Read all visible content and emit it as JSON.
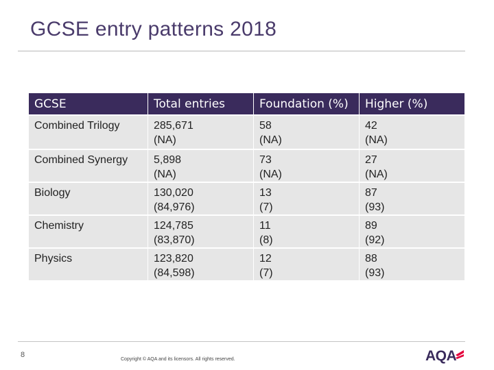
{
  "slide": {
    "title": "GCSE entry patterns 2018",
    "page_number": "8",
    "copyright": "Copyright © AQA and its licensors. All rights reserved.",
    "logo_text": "AQA",
    "colors": {
      "title": "#4a3b6b",
      "header_bg": "#3a2b5c",
      "row_bg": "#e6e6e6"
    }
  },
  "table": {
    "headers": [
      "GCSE",
      "Total entries",
      "Foundation (%)",
      "Higher (%)"
    ],
    "rows": [
      {
        "subject": "Combined Trilogy",
        "total": "285,671",
        "total_prev": "(NA)",
        "foundation": "58",
        "foundation_prev": "(NA)",
        "higher": "42",
        "higher_prev": "(NA)"
      },
      {
        "subject": "Combined Synergy",
        "total": "5,898",
        "total_prev": "(NA)",
        "foundation": "73",
        "foundation_prev": "(NA)",
        "higher": "27",
        "higher_prev": "(NA)"
      },
      {
        "subject": "Biology",
        "total": "130,020",
        "total_prev": "(84,976)",
        "foundation": "13",
        "foundation_prev": "(7)",
        "higher": "87",
        "higher_prev": "(93)"
      },
      {
        "subject": "Chemistry",
        "total": "124,785",
        "total_prev": "(83,870)",
        "foundation": "11",
        "foundation_prev": "(8)",
        "higher": "89",
        "higher_prev": "(92)"
      },
      {
        "subject": "Physics",
        "total": "123,820",
        "total_prev": "(84,598)",
        "foundation": "12",
        "foundation_prev": "(7)",
        "higher": "88",
        "higher_prev": "(93)"
      }
    ]
  }
}
